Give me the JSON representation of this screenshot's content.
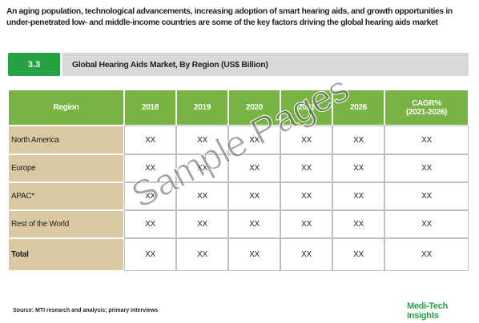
{
  "intro": "An aging population, technological advancements, increasing adoption of smart hearing aids, and growth opportunities in under-penetrated low- and middle-income countries are some of the key factors driving the global hearing aids market",
  "section": {
    "number": "3.3",
    "title": "Global Hearing Aids Market, By Region (US$ Billion)"
  },
  "table": {
    "header": [
      "Region",
      "2018",
      "2019",
      "2020",
      "2021",
      "2026",
      "CAGR%\n(2021-2026)"
    ],
    "rows": [
      [
        "North America",
        "XX",
        "XX",
        "XX",
        "XX",
        "XX",
        "XX"
      ],
      [
        "Europe",
        "XX",
        "XX",
        "XX",
        "XX",
        "XX",
        "XX"
      ],
      [
        "APAC*",
        "XX",
        "XX",
        "XX",
        "XX",
        "XX",
        "XX"
      ],
      [
        "Rest of the World",
        "XX",
        "XX",
        "XX",
        "XX",
        "XX",
        "XX"
      ],
      [
        "Total",
        "XX",
        "XX",
        "XX",
        "XX",
        "XX",
        "XX"
      ]
    ]
  },
  "watermark": "Sample Pages",
  "source": "Source: MTI research and analysis; primary interviews",
  "brand": "Medi-Tech Insights"
}
